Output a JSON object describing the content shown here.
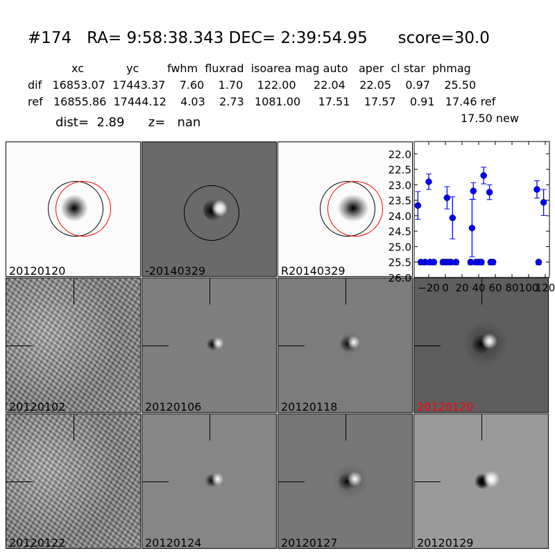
{
  "header": {
    "title": "#174   RA= 9:58:38.343 DEC= 2:39:54.95      score=30.0",
    "columns": "xc            yc        fwhm  fluxrad  isoarea mag auto   aper  cl star  phmag",
    "dif_row": "dif   16853.07  17443.37    7.60    1.70    122.00     22.04    22.05    0.97    25.50",
    "ref_row": "ref   16855.86  17444.12    4.03    2.73   1081.00     17.51    17.57    0.91   17.46 ref",
    "new_mag": "17.50 new",
    "dist": "dist=  2.89      z=   nan"
  },
  "panels": {
    "top": [
      "20120120",
      "-20140329",
      "R20140329"
    ],
    "row2": [
      "20120102",
      "20120106",
      "20120118",
      "20120120"
    ],
    "row3": [
      "20120122",
      "20120124",
      "20120127",
      "20120129"
    ],
    "highlight_color": "#ff0000"
  },
  "chart_data": {
    "type": "scatter",
    "title": "",
    "xlabel": "",
    "ylabel": "",
    "xlim": [
      -37.5,
      125
    ],
    "ylim": [
      26.0,
      21.6
    ],
    "y_inverted": true,
    "xticks": [
      "−20",
      "0",
      "20",
      "40",
      "60",
      "80",
      "100",
      "120"
    ],
    "xtick_values": [
      -20,
      0,
      20,
      40,
      60,
      80,
      100,
      120
    ],
    "yticks": [
      "22.0",
      "22.5",
      "23.0",
      "23.5",
      "24.0",
      "24.5",
      "25.0",
      "25.5",
      "26.0"
    ],
    "ytick_values": [
      22.0,
      22.5,
      23.0,
      23.5,
      24.0,
      24.5,
      25.0,
      25.5,
      26.0
    ],
    "color": "#0000ff",
    "detections": {
      "x": [
        -33,
        -20,
        2,
        8.6,
        32,
        33.6,
        46,
        53,
        110,
        118
      ],
      "y": [
        23.67,
        22.9,
        23.42,
        24.07,
        24.4,
        23.2,
        22.7,
        23.24,
        23.15,
        23.57
      ],
      "err": [
        0.45,
        0.25,
        0.36,
        0.68,
        0.93,
        0.27,
        0.27,
        0.24,
        0.28,
        0.42
      ]
    },
    "limits": {
      "x": [
        -29.4,
        -24.4,
        -18.3,
        -13.9,
        -3,
        0,
        3.3,
        6.7,
        12.8,
        30.3,
        36.7,
        40,
        43.3,
        54.4,
        57.2,
        112
      ],
      "y": 25.5
    }
  }
}
